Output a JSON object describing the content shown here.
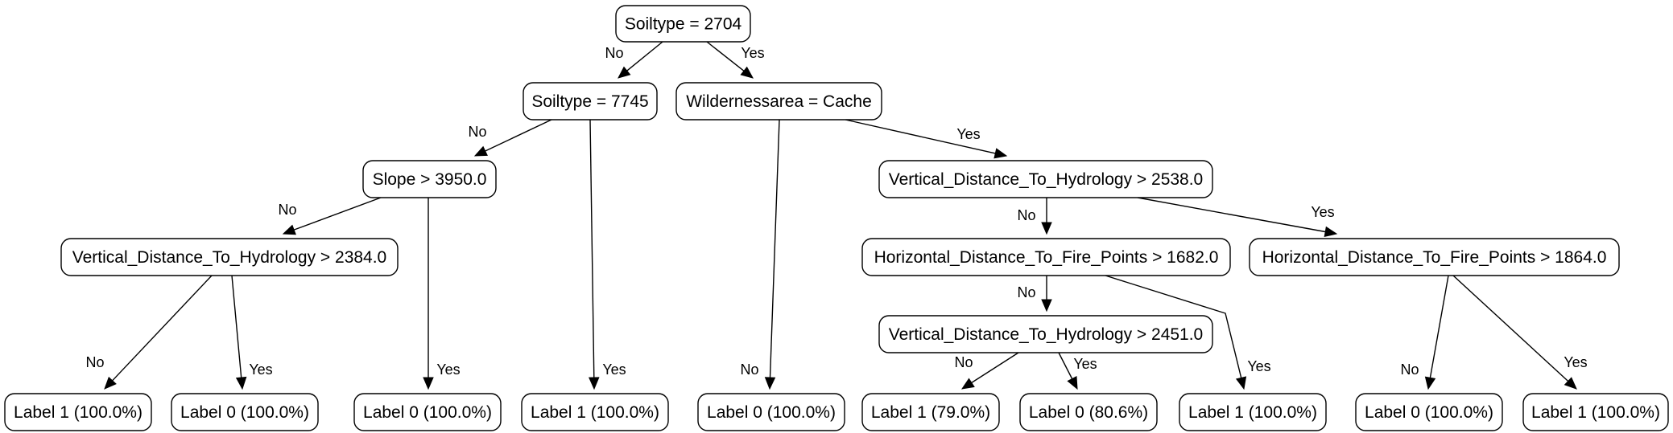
{
  "nodes": [
    {
      "id": "n0",
      "label": "Soiltype = 2704"
    },
    {
      "id": "n1",
      "label": "Soiltype = 7745"
    },
    {
      "id": "n2",
      "label": "Wildernessarea = Cache"
    },
    {
      "id": "n3",
      "label": "Slope > 3950.0"
    },
    {
      "id": "n4",
      "label": "Vertical_Distance_To_Hydrology > 2538.0"
    },
    {
      "id": "n5",
      "label": "Vertical_Distance_To_Hydrology > 2384.0"
    },
    {
      "id": "n6",
      "label": "Horizontal_Distance_To_Fire_Points > 1682.0"
    },
    {
      "id": "n7",
      "label": "Horizontal_Distance_To_Fire_Points > 1864.0"
    },
    {
      "id": "n8",
      "label": "Vertical_Distance_To_Hydrology > 2451.0"
    },
    {
      "id": "l1",
      "label": "Label 1 (100.0%)"
    },
    {
      "id": "l2",
      "label": "Label 0 (100.0%)"
    },
    {
      "id": "l3",
      "label": "Label 0 (100.0%)"
    },
    {
      "id": "l4",
      "label": "Label 1 (100.0%)"
    },
    {
      "id": "l5",
      "label": "Label 0 (100.0%)"
    },
    {
      "id": "l6",
      "label": "Label 1 (79.0%)"
    },
    {
      "id": "l7",
      "label": "Label 0 (80.6%)"
    },
    {
      "id": "l8",
      "label": "Label 1 (100.0%)"
    },
    {
      "id": "l9",
      "label": "Label 0 (100.0%)"
    },
    {
      "id": "l10",
      "label": "Label 1 (100.0%)"
    }
  ],
  "edges": [
    {
      "from": "n0",
      "to": "n1",
      "label": "No"
    },
    {
      "from": "n0",
      "to": "n2",
      "label": "Yes"
    },
    {
      "from": "n1",
      "to": "n3",
      "label": "No"
    },
    {
      "from": "n1",
      "to": "l4",
      "label": "Yes"
    },
    {
      "from": "n3",
      "to": "n5",
      "label": "No"
    },
    {
      "from": "n3",
      "to": "l3",
      "label": "Yes"
    },
    {
      "from": "n5",
      "to": "l1",
      "label": "No"
    },
    {
      "from": "n5",
      "to": "l2",
      "label": "Yes"
    },
    {
      "from": "n2",
      "to": "l5",
      "label": "No"
    },
    {
      "from": "n2",
      "to": "n4",
      "label": "Yes"
    },
    {
      "from": "n4",
      "to": "n6",
      "label": "No"
    },
    {
      "from": "n4",
      "to": "n7",
      "label": "Yes"
    },
    {
      "from": "n6",
      "to": "n8",
      "label": "No"
    },
    {
      "from": "n6",
      "to": "l8",
      "label": "Yes"
    },
    {
      "from": "n8",
      "to": "l6",
      "label": "No"
    },
    {
      "from": "n8",
      "to": "l7",
      "label": "Yes"
    },
    {
      "from": "n7",
      "to": "l9",
      "label": "No"
    },
    {
      "from": "n7",
      "to": "l10",
      "label": "Yes"
    }
  ]
}
